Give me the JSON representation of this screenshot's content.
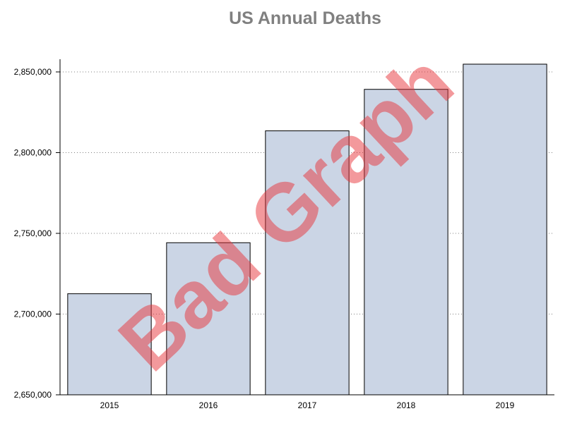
{
  "chart_data": {
    "type": "bar",
    "title": "US Annual Deaths",
    "xlabel": "",
    "ylabel": "",
    "categories": [
      "2015",
      "2016",
      "2017",
      "2018",
      "2019"
    ],
    "values": [
      2712600,
      2744200,
      2813500,
      2839200,
      2854800
    ],
    "ylim": [
      2650000,
      2855000
    ],
    "yticks": [
      2650000,
      2700000,
      2750000,
      2800000,
      2850000
    ],
    "ytick_labels": [
      "2,650,000",
      "2,700,000",
      "2,750,000",
      "2,800,000",
      "2,850,000"
    ],
    "grid": "horizontal-dotted",
    "bar_color": "#cbd5e5",
    "bar_edge_color": "#000000",
    "watermark": "Bad Graph",
    "watermark_color": "#e8343a"
  }
}
